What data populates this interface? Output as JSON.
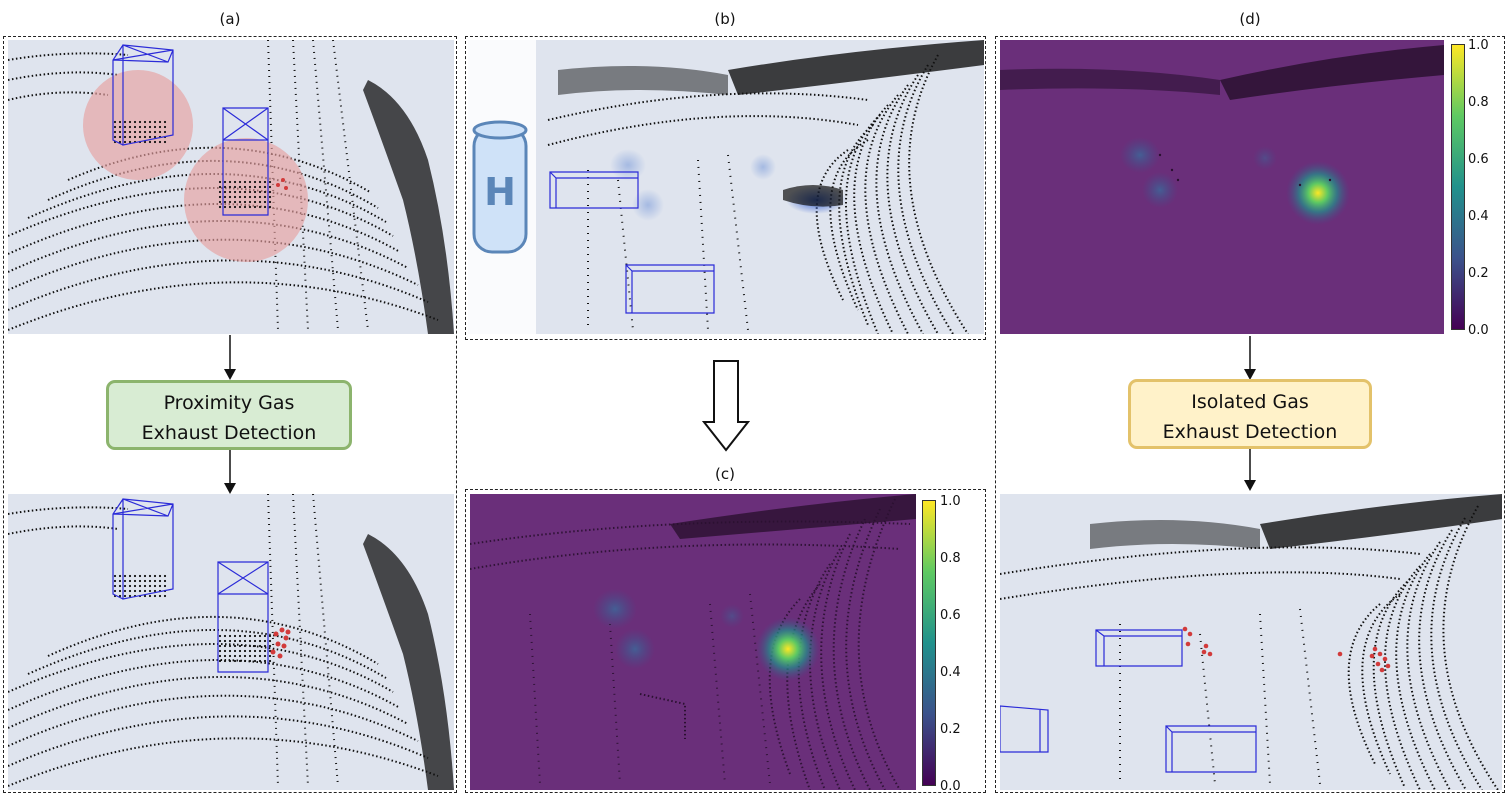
{
  "panels": {
    "a": {
      "label": "(a)"
    },
    "b": {
      "label": "(b)"
    },
    "c": {
      "label": "(c)"
    },
    "d": {
      "label": "(d)"
    }
  },
  "boxes": {
    "proximity": {
      "line1": "Proximity Gas",
      "line2": "Exhaust Detection"
    },
    "isolated": {
      "line1": "Isolated Gas",
      "line2": "Exhaust Detection"
    }
  },
  "gas_tank": {
    "letter": "H"
  },
  "colorbar_ticks": [
    "1.0",
    "0.8",
    "0.6",
    "0.4",
    "0.2",
    "0.0"
  ],
  "colors": {
    "pointcloud_bg": "#dfe4ee",
    "heatmap_bg": "#6a2f7a",
    "bbox": "#2b2bd8",
    "exhaust_points": "#d23b3b",
    "proximity_sphere": "#e6a0a0",
    "green_box_fill": "#d8ecd3",
    "green_box_border": "#8cb46d",
    "yellow_box_fill": "#fff2c9",
    "yellow_box_border": "#e3c26a",
    "tank_fill": "#cfe2f8",
    "tank_stroke": "#5b86b8"
  },
  "icons": [
    "down-arrow-icon",
    "hollow-down-arrow-icon",
    "hydrogen-tank-icon",
    "bounding-box-icon"
  ]
}
